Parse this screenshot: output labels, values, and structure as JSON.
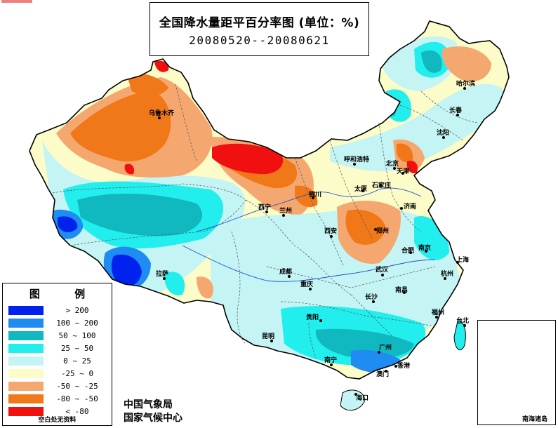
{
  "title": {
    "main": "全国降水量距平百分率图 (单位：%)",
    "period": "20080520--20080621"
  },
  "legend": {
    "heading": "图 例",
    "note": "空白处无资料",
    "classes": [
      {
        "range": "> 200",
        "color": "#0022ee"
      },
      {
        "range": "100 ~ 200",
        "color": "#1e8cf0"
      },
      {
        "range": "50 ~ 100",
        "color": "#10b8c0"
      },
      {
        "range": "25 ~ 50",
        "color": "#22eeee"
      },
      {
        "range": "0 ~ 25",
        "color": "#c4f4f4"
      },
      {
        "range": "-25 ~ 0",
        "color": "#fcfcc8"
      },
      {
        "range": "-50 ~ -25",
        "color": "#f4a870"
      },
      {
        "range": "-80 ~ -50",
        "color": "#f07818"
      },
      {
        "range": "< -80",
        "color": "#f01010"
      }
    ]
  },
  "agencies": [
    "中国气象局",
    "国家气候中心"
  ],
  "inset_label": "南海诸岛",
  "cities": [
    {
      "name": "哈尔滨"
    },
    {
      "name": "长春"
    },
    {
      "name": "沈阳"
    },
    {
      "name": "乌鲁木齐"
    },
    {
      "name": "呼和浩特"
    },
    {
      "name": "北京"
    },
    {
      "name": "天津"
    },
    {
      "name": "太原"
    },
    {
      "name": "石家庄"
    },
    {
      "name": "银川"
    },
    {
      "name": "济南"
    },
    {
      "name": "西宁"
    },
    {
      "name": "兰州"
    },
    {
      "name": "郑州"
    },
    {
      "name": "西安"
    },
    {
      "name": "合肥"
    },
    {
      "name": "南京"
    },
    {
      "name": "上海"
    },
    {
      "name": "拉萨"
    },
    {
      "name": "成都"
    },
    {
      "name": "武汉"
    },
    {
      "name": "杭州"
    },
    {
      "name": "重庆"
    },
    {
      "name": "南昌"
    },
    {
      "name": "长沙"
    },
    {
      "name": "贵阳"
    },
    {
      "name": "福州"
    },
    {
      "name": "台北"
    },
    {
      "name": "昆明"
    },
    {
      "name": "南宁"
    },
    {
      "name": "广州"
    },
    {
      "name": "香港"
    },
    {
      "name": "澳门"
    },
    {
      "name": "海口"
    }
  ]
}
